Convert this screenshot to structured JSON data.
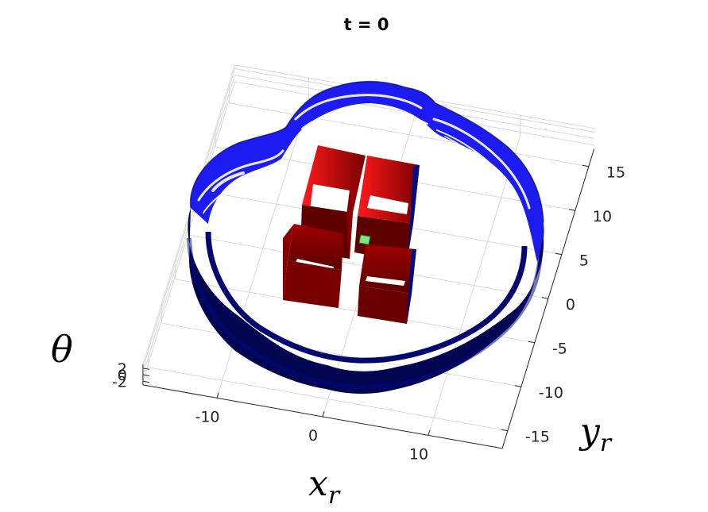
{
  "chart_data": {
    "type": "3d-surface",
    "title": "t = 0",
    "xlabel": "x",
    "xlabel_sub": "r",
    "ylabel": "y",
    "ylabel_sub": "r",
    "zlabel": "θ",
    "x_ticks": [
      -10,
      0,
      10
    ],
    "y_ticks": [
      15,
      10,
      5,
      0,
      -5,
      -10,
      -15
    ],
    "z_ticks": [
      2,
      0,
      -2
    ],
    "x_tick_labels": [
      "-10",
      "0",
      "10"
    ],
    "y_tick_labels": [
      "15",
      "10",
      "5",
      "0",
      "-5",
      "-10",
      "-15"
    ],
    "z_tick_labels": [
      "2",
      "0",
      "-2"
    ],
    "xlim": [
      -17,
      17
    ],
    "ylim": [
      -17,
      17
    ],
    "zlim": [
      -3.14,
      3.14
    ],
    "grid": true,
    "objects": [
      {
        "kind": "reachable-set-tube",
        "shape": "four-lobed ring",
        "color_top": "#1c1cf0",
        "color_side": "#00055e"
      },
      {
        "kind": "obstacle",
        "shape": "hollow square",
        "color": "#c00000",
        "count": 4
      },
      {
        "kind": "target",
        "shape": "small square",
        "color": "#7be87b"
      }
    ]
  }
}
